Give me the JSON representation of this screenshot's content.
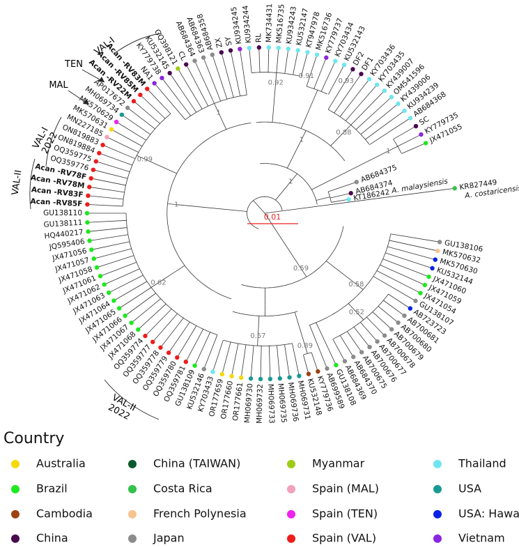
{
  "tree": {
    "leaves": [
      {
        "label": "KU532146",
        "color": "#8c8c8c"
      },
      {
        "label": "GU138109",
        "color": "#1ee81e"
      },
      {
        "label": "OQ359781",
        "color": "#ee1c1c"
      },
      {
        "label": "OQ359780",
        "color": "#ee1c1c"
      },
      {
        "label": "OQ359779",
        "color": "#ee1c1c"
      },
      {
        "label": "OQ359778",
        "color": "#ee1c1c"
      },
      {
        "label": "OQ359777",
        "color": "#ee1c1c"
      },
      {
        "label": "OQ359774",
        "color": "#ee1c1c"
      },
      {
        "label": "JX471068",
        "color": "#1ee81e"
      },
      {
        "label": "JX471067",
        "color": "#1ee81e"
      },
      {
        "label": "JX471066",
        "color": "#1ee81e"
      },
      {
        "label": "JX471065",
        "color": "#1ee81e"
      },
      {
        "label": "JX471064",
        "color": "#1ee81e"
      },
      {
        "label": "JX471063",
        "color": "#1ee81e"
      },
      {
        "label": "JX471062",
        "color": "#1ee81e"
      },
      {
        "label": "JX471061",
        "color": "#1ee81e"
      },
      {
        "label": "JX471058",
        "color": "#1ee81e"
      },
      {
        "label": "JX471057",
        "color": "#1ee81e"
      },
      {
        "label": "JX471056",
        "color": "#1ee81e"
      },
      {
        "label": "JQ595406",
        "color": "#1ee81e"
      },
      {
        "label": "HQ440217",
        "color": "#1ee81e"
      },
      {
        "label": "GU138111",
        "color": "#1ee81e"
      },
      {
        "label": "GU138110",
        "color": "#1ee81e"
      },
      {
        "label": "Acan -RV85F",
        "color": "#ee1c1c",
        "bold": true
      },
      {
        "label": "Acan -RV83F",
        "color": "#ee1c1c",
        "bold": true
      },
      {
        "label": "Acan -RV78M",
        "color": "#ee1c1c",
        "bold": true
      },
      {
        "label": "Acan -RV78F",
        "color": "#ee1c1c",
        "bold": true
      },
      {
        "label": "OQ359776",
        "color": "#ee1c1c"
      },
      {
        "label": "OQ359775",
        "color": "#ee1c1c"
      },
      {
        "label": "ON819884",
        "color": "#ee1c1c"
      },
      {
        "label": "ON819883",
        "color": "#ee1c1c"
      },
      {
        "label": "MN227185",
        "color": "#f2a2bc"
      },
      {
        "label": "MK570631",
        "color": "#f5d90a"
      },
      {
        "label": "MK570629",
        "color": "#ee22ee"
      },
      {
        "label": "MH069734",
        "color": "#1a9994"
      },
      {
        "label": "AP017672",
        "color": "#8c8c8c"
      },
      {
        "label": "Acan -RV22M",
        "color": "#ee1c1c",
        "bold": true
      },
      {
        "label": "Acan -RV85M",
        "color": "#ee1c1c",
        "bold": true
      },
      {
        "label": "Acan -RV83M",
        "color": "#ee1c1c",
        "bold": true
      },
      {
        "label": "NA1",
        "color": "#8a25e0"
      },
      {
        "label": "KY779738",
        "color": "#8a25e0"
      },
      {
        "label": "KU532145",
        "color": "#4a0a4e"
      },
      {
        "label": "GQ398121",
        "color": "#9ccc16"
      },
      {
        "label": "CL",
        "color": "#4a0a4e"
      },
      {
        "label": "AB684364",
        "color": "#8c8c8c"
      },
      {
        "label": "AB684363",
        "color": "#8c8c8c"
      },
      {
        "label": "AB684358",
        "color": "#8c8c8c"
      },
      {
        "label": "ZX",
        "color": "#4a0a4e"
      },
      {
        "label": "SY",
        "color": "#4a0a4e"
      },
      {
        "label": "KU934245",
        "color": "#8a25e0"
      },
      {
        "label": "KU934244",
        "color": "#6fe6ef"
      },
      {
        "label": "RL",
        "color": "#4a0a4e"
      },
      {
        "label": "MK734431",
        "color": "#6fe6ef"
      },
      {
        "label": "MK516735",
        "color": "#6fe6ef"
      },
      {
        "label": "KU934243",
        "color": "#6fe6ef"
      },
      {
        "label": "KU532147",
        "color": "#6fe6ef"
      },
      {
        "label": "KT947978",
        "color": "#6fe6ef"
      },
      {
        "label": "MK516736",
        "color": "#6fe6ef"
      },
      {
        "label": "KY779737",
        "color": "#8a25e0"
      },
      {
        "label": "KY703434",
        "color": "#6fe6ef"
      },
      {
        "label": "KU532143",
        "color": "#6fe6ef"
      },
      {
        "label": "DF2",
        "color": "#4a0a4e"
      },
      {
        "label": "DF1",
        "color": "#4a0a4e"
      },
      {
        "label": "KY703436",
        "color": "#6fe6ef"
      },
      {
        "label": "KY703435",
        "color": "#6fe6ef"
      },
      {
        "label": "KY439007",
        "color": "#6fe6ef"
      },
      {
        "label": "OM541596",
        "color": "#6fe6ef"
      },
      {
        "label": "KY439006",
        "color": "#6fe6ef"
      },
      {
        "label": "KU934239",
        "color": "#6fe6ef"
      },
      {
        "label": "AB684368",
        "color": "#6fe6ef"
      },
      {
        "label": "SC",
        "color": "#4a0a4e"
      },
      {
        "label": "KY779735",
        "color": "#8a25e0"
      },
      {
        "label": "JX471055",
        "color": "#1ee81e"
      },
      {
        "label": "AB684375",
        "color": "#8c8c8c"
      },
      {
        "label": "AB684374",
        "color": "#4a0a4e"
      },
      {
        "label": "KT186242",
        "species": "A. malaysiensis",
        "color": "#6fe6ef"
      },
      {
        "label": "KR827449",
        "species": "A. costaricensis",
        "color": "#33c24a"
      },
      {
        "label": "GU138106",
        "color": "#8c8c8c"
      },
      {
        "label": "MK570632",
        "color": "#f7c48e"
      },
      {
        "label": "MK570630",
        "color": "#0a22e6"
      },
      {
        "label": "KU532144",
        "color": "#0a22e6"
      },
      {
        "label": "JX471060",
        "color": "#1ee81e"
      },
      {
        "label": "JX471059",
        "color": "#1ee81e"
      },
      {
        "label": "JX471054",
        "color": "#1ee81e"
      },
      {
        "label": "GU138107",
        "color": "#8c8c8c"
      },
      {
        "label": "AB723723",
        "color": "#0a22e6"
      },
      {
        "label": "AB700681",
        "color": "#8c8c8c"
      },
      {
        "label": "AB700680",
        "color": "#8c8c8c"
      },
      {
        "label": "AB700679",
        "color": "#8c8c8c"
      },
      {
        "label": "AB700678",
        "color": "#8c8c8c"
      },
      {
        "label": "AB700677",
        "color": "#8c8c8c"
      },
      {
        "label": "AB700676",
        "color": "#8c8c8c"
      },
      {
        "label": "AB700675",
        "color": "#8c8c8c"
      },
      {
        "label": "AB684370",
        "color": "#8c8c8c"
      },
      {
        "label": "AB684369",
        "color": "#8c8c8c"
      },
      {
        "label": "GU138108",
        "color": "#1ee81e"
      },
      {
        "label": "AB699589",
        "color": "#8c8c8c"
      },
      {
        "label": "KY779736",
        "color": "#9c4210"
      },
      {
        "label": "KU532148",
        "color": "#9c4210"
      },
      {
        "label": "MH069731",
        "color": "#1a9994"
      },
      {
        "label": "MH069736",
        "color": "#1a9994"
      },
      {
        "label": "MH069735",
        "color": "#1a9994"
      },
      {
        "label": "MH069733",
        "color": "#1a9994"
      },
      {
        "label": "MH069732",
        "color": "#1a9994"
      },
      {
        "label": "MH069730",
        "color": "#1a9994"
      },
      {
        "label": "OR177661",
        "color": "#f5d90a"
      },
      {
        "label": "OR177660",
        "color": "#f5d90a"
      },
      {
        "label": "OR177659",
        "color": "#f5d90a"
      },
      {
        "label": "KY703433",
        "color": "#6fe6ef"
      }
    ],
    "support_values": [
      0.99,
      0.62,
      1,
      1,
      0.92,
      0.91,
      0.93,
      0.88,
      1,
      1,
      1,
      0.59,
      0.58,
      0.52,
      0.57,
      0.89
    ],
    "clade_labels": [
      {
        "lines": [
          "VAL-I"
        ]
      },
      {
        "lines": [
          "TEN"
        ]
      },
      {
        "lines": [
          "MAL"
        ]
      },
      {
        "lines": [
          "VAL-I",
          "2022"
        ]
      },
      {
        "lines": [
          "VAL-II"
        ]
      },
      {
        "lines": [
          "VAL-II",
          "2022"
        ]
      }
    ],
    "scale_bar": 0.01
  },
  "legend": {
    "title": "Country",
    "items": [
      {
        "name": "Australia",
        "color": "#f5d90a"
      },
      {
        "name": "Brazil",
        "color": "#1ee81e"
      },
      {
        "name": "Cambodia",
        "color": "#9c4210"
      },
      {
        "name": "China",
        "color": "#4a0a4e"
      },
      {
        "name": "China (TAIWAN)",
        "color": "#0a5a2e"
      },
      {
        "name": "Costa Rica",
        "color": "#33c24a"
      },
      {
        "name": "French Polynesia",
        "color": "#f7c48e"
      },
      {
        "name": "Japan",
        "color": "#8c8c8c"
      },
      {
        "name": "Myanmar",
        "color": "#9ccc16"
      },
      {
        "name": "Spain (MAL)",
        "color": "#f2a2bc"
      },
      {
        "name": "Spain (TEN)",
        "color": "#ee22ee"
      },
      {
        "name": "Spain (VAL)",
        "color": "#ee1c1c"
      },
      {
        "name": "Thailand",
        "color": "#6fe6ef"
      },
      {
        "name": "USA",
        "color": "#1a9994"
      },
      {
        "name": "USA: Hawaii",
        "color": "#0a22e6"
      },
      {
        "name": "Vietnam",
        "color": "#8a25e0"
      }
    ]
  }
}
